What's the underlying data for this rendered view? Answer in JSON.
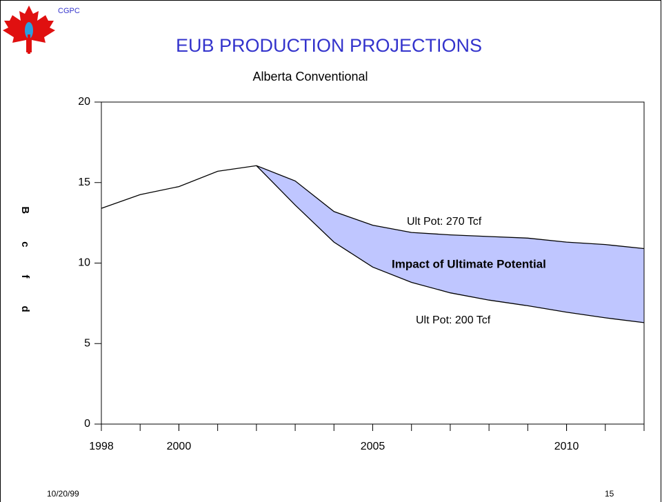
{
  "logo_text": "CGPC",
  "footer": {
    "date": "10/20/99",
    "page": "15"
  },
  "chart_data": {
    "type": "line",
    "title": "EUB PRODUCTION PROJECTIONS",
    "subtitle": "Alberta Conventional",
    "y_label": "Bcfd",
    "x": [
      1998,
      1999,
      2000,
      2001,
      2002,
      2003,
      2004,
      2005,
      2006,
      2007,
      2008,
      2009,
      2010,
      2011,
      2012
    ],
    "series": [
      {
        "name": "Ult Pot:  270 Tcf",
        "color": "#000000",
        "values": [
          13.4,
          14.25,
          14.75,
          15.7,
          16.05,
          15.1,
          13.2,
          12.35,
          11.9,
          11.75,
          11.65,
          11.55,
          11.3,
          11.15,
          10.9
        ]
      },
      {
        "name": "Ult Pot: 200 Tcf",
        "color": "#000000",
        "values": [
          null,
          null,
          null,
          null,
          16.05,
          13.6,
          11.3,
          9.75,
          8.8,
          8.15,
          7.7,
          7.35,
          6.95,
          6.6,
          6.3
        ]
      }
    ],
    "fill_color": "#bfc6ff",
    "annotation": "Impact of Ultimate Potential",
    "xlim": [
      1998,
      2012
    ],
    "xticks": [
      1998,
      2000,
      2005,
      2010
    ],
    "ylim": [
      0,
      20
    ],
    "yticks": [
      0,
      5,
      10,
      15,
      20
    ]
  }
}
